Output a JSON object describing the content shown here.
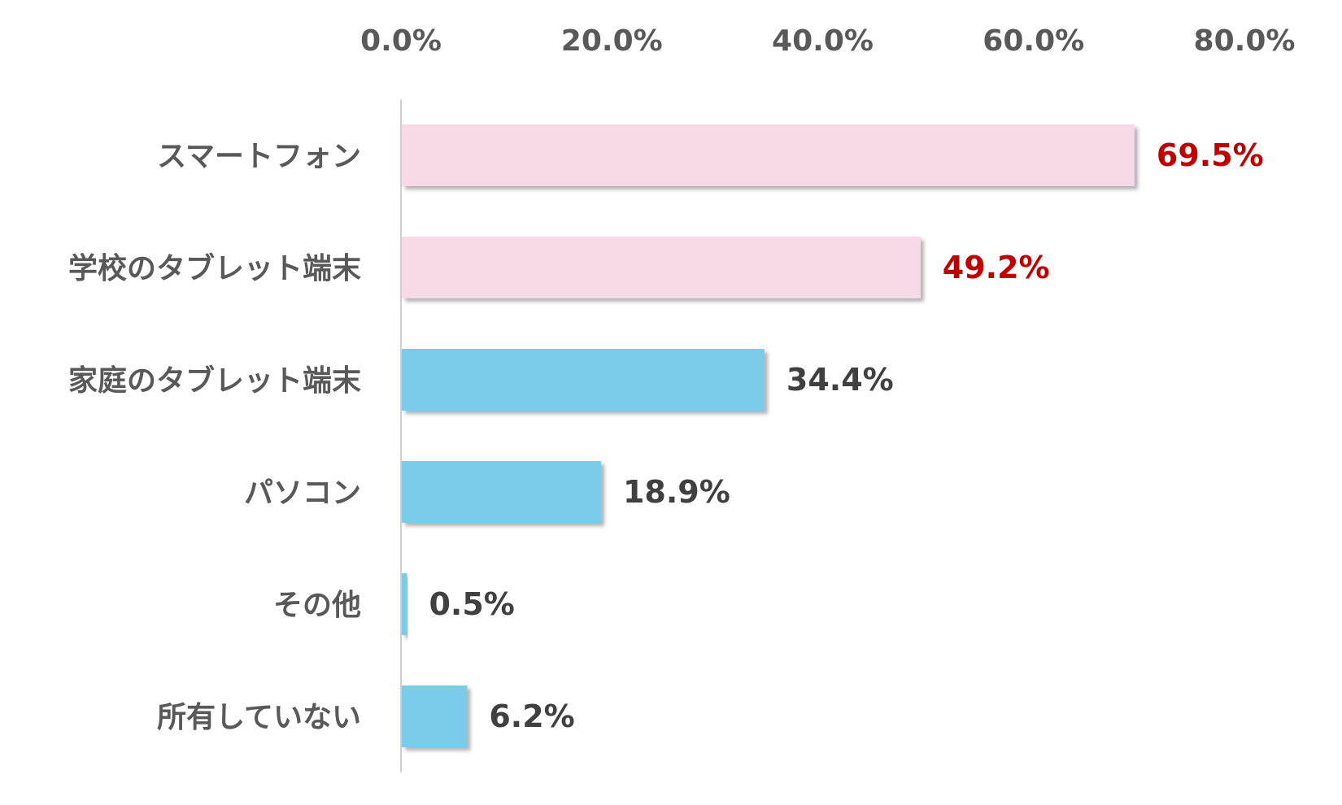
{
  "chart_data": {
    "type": "bar",
    "orientation": "horizontal",
    "categories": [
      "スマートフォン",
      "学校のタブレット端末",
      "家庭のタブレット端末",
      "パソコン",
      "その他",
      "所有していない"
    ],
    "values": [
      69.5,
      49.2,
      34.4,
      18.9,
      0.5,
      6.2
    ],
    "value_labels": [
      "69.5%",
      "49.2%",
      "34.4%",
      "18.9%",
      "0.5%",
      "6.2%"
    ],
    "highlighted": [
      true,
      true,
      false,
      false,
      false,
      false
    ],
    "x_ticks": [
      "0.0%",
      "20.0%",
      "40.0%",
      "60.0%",
      "80.0%"
    ],
    "x_tick_values": [
      0,
      20,
      40,
      60,
      80
    ],
    "xlim": [
      0,
      80
    ],
    "x_axis_position": "top",
    "grid": false,
    "legend": "none",
    "colors": {
      "highlight_bar": "#f8d9e7",
      "normal_bar": "#7ccbea",
      "highlight_label": "#c00000",
      "normal_label": "#404040",
      "tick_label": "#595959",
      "category_label": "#595959",
      "axis_line": "#d0d0d0"
    }
  }
}
